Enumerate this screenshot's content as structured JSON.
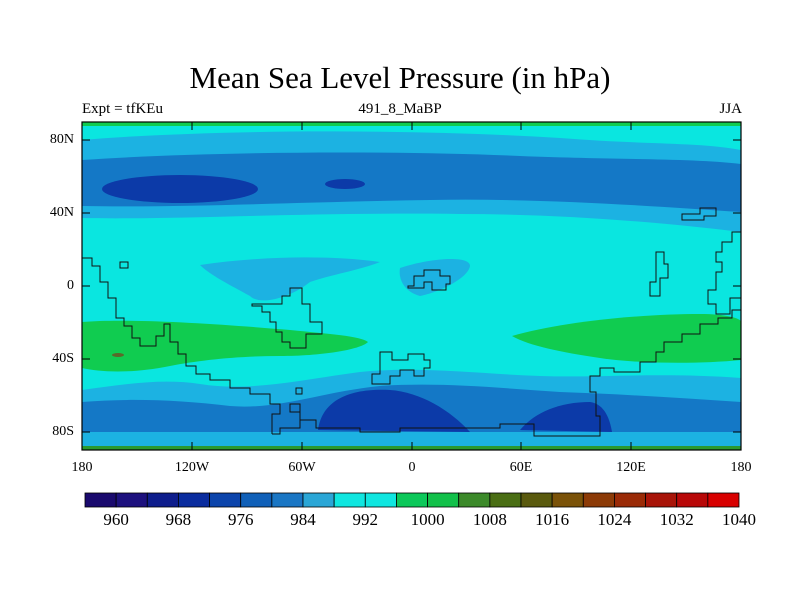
{
  "title": "Mean Sea Level Pressure (in hPa)",
  "subtitle_left": "Expt = tfKEu",
  "subtitle_center": "491_8_MaBP",
  "subtitle_right": "JJA",
  "latitude_labels": [
    "80N",
    "40N",
    "0",
    "40S",
    "80S"
  ],
  "longitude_labels": [
    "180",
    "120W",
    "60W",
    "0",
    "60E",
    "120E",
    "180"
  ],
  "colorbar": {
    "labels": [
      "960",
      "968",
      "976",
      "984",
      "992",
      "1000",
      "1008",
      "1016",
      "1024",
      "1032",
      "1040"
    ],
    "colors": [
      "#1a0a6e",
      "#1d117e",
      "#0e1d8c",
      "#0a2c9e",
      "#0c44ab",
      "#1060b8",
      "#1a76c4",
      "#2aa6d6",
      "#10e6e0",
      "#10e6e0",
      "#0cc85a",
      "#12c04a",
      "#3c8a2a",
      "#4a6e14",
      "#5a5a0e",
      "#7a5208",
      "#8c3a06",
      "#9a2a06",
      "#a81408",
      "#b80808",
      "#d80000"
    ]
  },
  "colors": {
    "cyan": "#0ae6e0",
    "light_blue": "#1cb2e2",
    "mid_blue": "#1478c6",
    "dark_blue": "#0c3aa8",
    "green": "#10cc50",
    "dark_green": "#2a9a30"
  }
}
